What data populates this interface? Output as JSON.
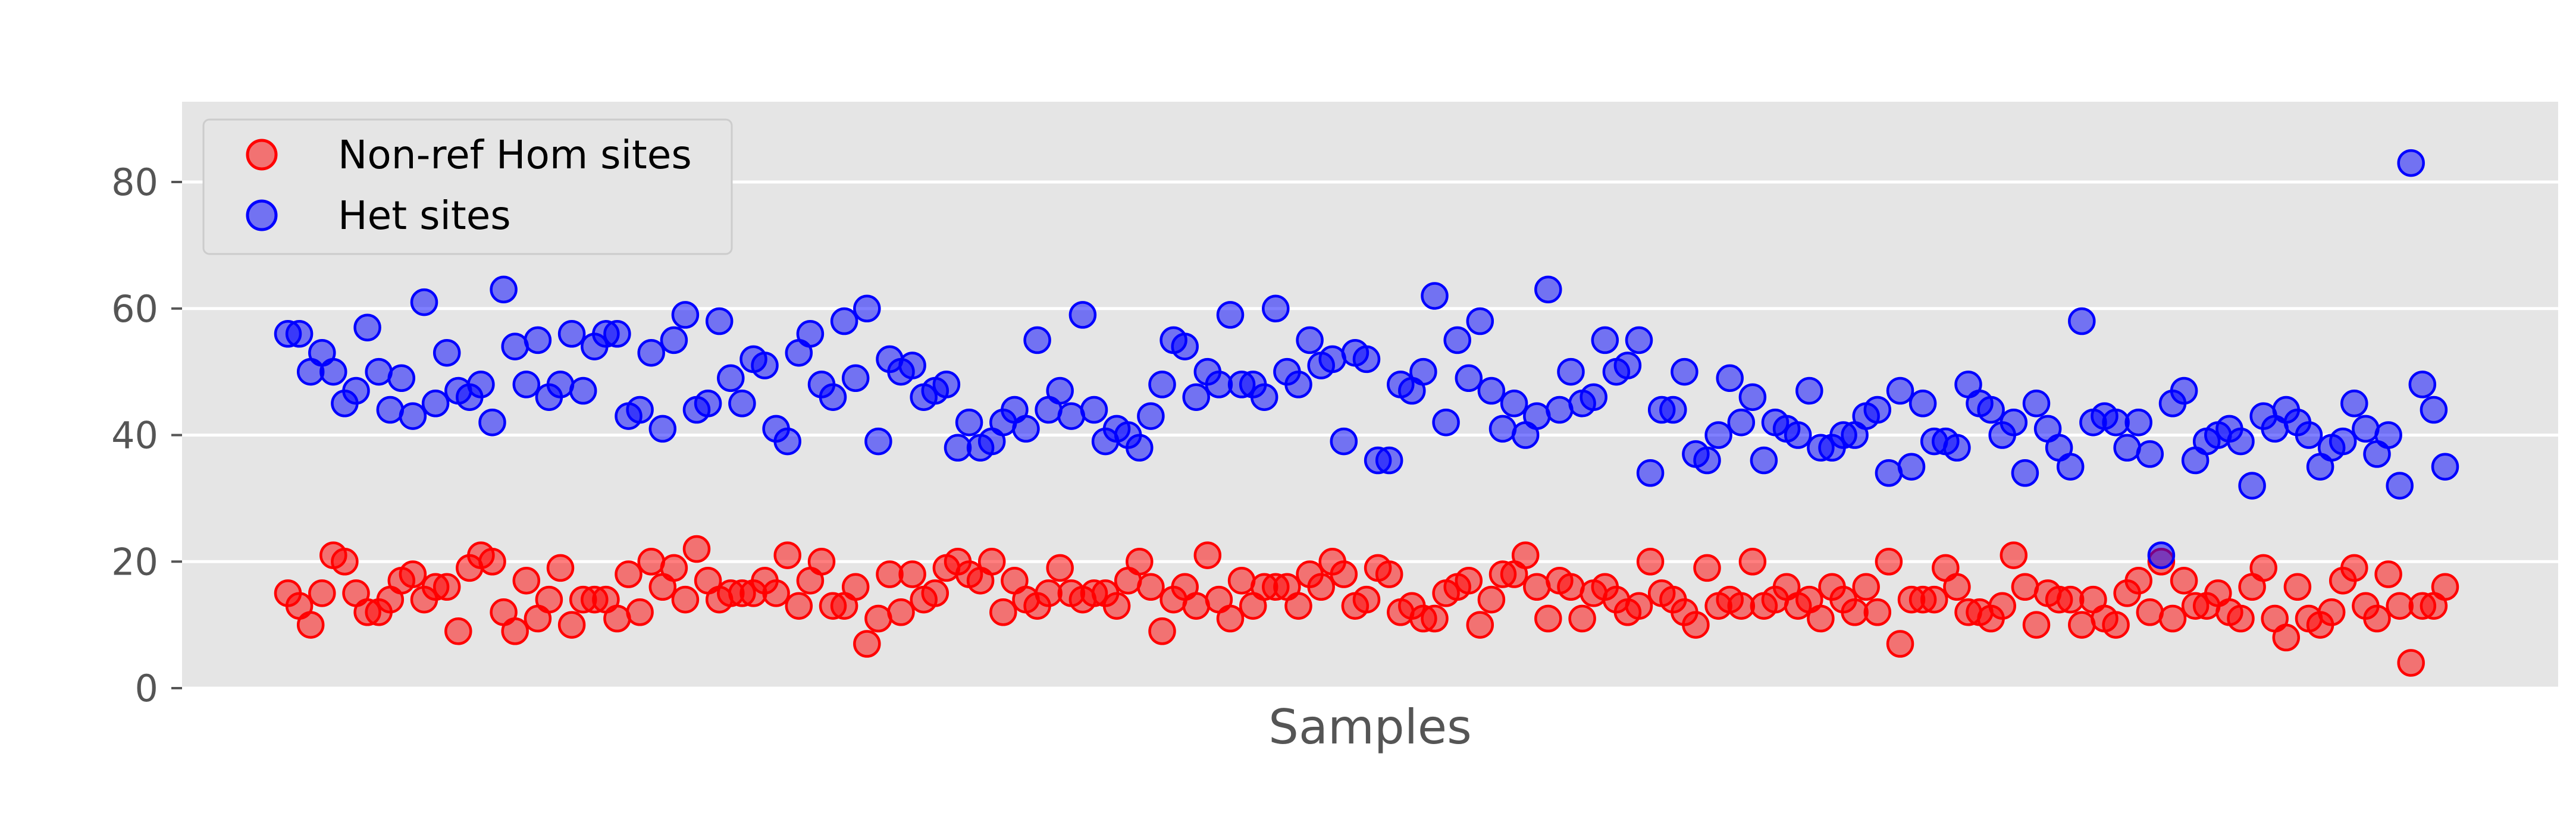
{
  "chart_data": {
    "type": "scatter",
    "title": "",
    "xlabel": "Samples",
    "ylabel": "",
    "ylim": [
      0,
      93
    ],
    "yticks": [
      "0",
      "20",
      "40",
      "60",
      "80"
    ],
    "grid": true,
    "legend_placement": "top-left",
    "series": [
      {
        "name": "Non-ref Hom sites",
        "color": "#ff0000",
        "values": [
          15,
          13,
          10,
          15,
          21,
          20,
          15,
          12,
          12,
          14,
          17,
          18,
          14,
          16,
          16,
          9,
          19,
          21,
          20,
          12,
          9,
          17,
          11,
          14,
          19,
          10,
          14,
          14,
          14,
          11,
          18,
          12,
          20,
          16,
          19,
          14,
          22,
          17,
          14,
          15,
          15,
          15,
          17,
          15,
          21,
          13,
          17,
          20,
          13,
          13,
          16,
          7,
          11,
          18,
          12,
          18,
          14,
          15,
          19,
          20,
          18,
          17,
          20,
          12,
          17,
          14,
          13,
          15,
          19,
          15,
          14,
          15,
          15,
          13,
          17,
          20,
          16,
          9,
          14,
          16,
          13,
          21,
          14,
          11,
          17,
          13,
          16,
          16,
          16,
          13,
          18,
          16,
          20,
          18,
          13,
          14,
          19,
          18,
          12,
          13,
          11,
          11,
          15,
          16,
          17,
          10,
          14,
          18,
          18,
          21,
          16,
          11,
          17,
          16,
          11,
          15,
          16,
          14,
          12,
          13,
          20,
          15,
          14,
          12,
          10,
          19,
          13,
          14,
          13,
          20,
          13,
          14,
          16,
          13,
          14,
          11,
          16,
          14,
          12,
          16,
          12,
          20,
          7,
          14,
          14,
          14,
          19,
          16,
          12,
          12,
          11,
          13,
          21,
          16,
          10,
          15,
          14,
          14,
          10,
          14,
          11,
          10,
          15,
          17,
          12,
          20,
          11,
          17,
          13,
          13,
          15,
          12,
          11,
          16,
          19,
          11,
          8,
          16,
          11,
          10,
          12,
          17,
          19,
          13,
          11,
          18,
          13,
          4,
          13,
          13,
          16
        ]
      },
      {
        "name": "Het sites",
        "color": "#0000ff",
        "values": [
          56,
          56,
          50,
          53,
          50,
          45,
          47,
          57,
          50,
          44,
          49,
          43,
          61,
          45,
          53,
          47,
          46,
          48,
          42,
          63,
          54,
          48,
          55,
          46,
          48,
          56,
          47,
          54,
          56,
          56,
          43,
          44,
          53,
          41,
          55,
          59,
          44,
          45,
          58,
          49,
          45,
          52,
          51,
          41,
          39,
          53,
          56,
          48,
          46,
          58,
          49,
          60,
          39,
          52,
          50,
          51,
          46,
          47,
          48,
          38,
          42,
          38,
          39,
          42,
          44,
          41,
          55,
          44,
          47,
          43,
          59,
          44,
          39,
          41,
          40,
          38,
          43,
          48,
          55,
          54,
          46,
          50,
          48,
          59,
          48,
          48,
          46,
          60,
          50,
          48,
          55,
          51,
          52,
          39,
          53,
          52,
          36,
          36,
          48,
          47,
          50,
          62,
          42,
          55,
          49,
          58,
          47,
          41,
          45,
          40,
          43,
          63,
          44,
          50,
          45,
          46,
          55,
          50,
          51,
          55,
          34,
          44,
          44,
          50,
          37,
          36,
          40,
          49,
          42,
          46,
          36,
          42,
          41,
          40,
          47,
          38,
          38,
          40,
          40,
          43,
          44,
          34,
          47,
          35,
          45,
          39,
          39,
          38,
          48,
          45,
          44,
          40,
          42,
          34,
          45,
          41,
          38,
          35,
          58,
          42,
          43,
          42,
          38,
          42,
          37,
          21,
          45,
          47,
          36,
          39,
          40,
          41,
          39,
          32,
          43,
          41,
          44,
          42,
          40,
          35,
          38,
          39,
          45,
          41,
          37,
          40,
          32,
          83,
          48,
          44,
          35
        ]
      }
    ]
  }
}
